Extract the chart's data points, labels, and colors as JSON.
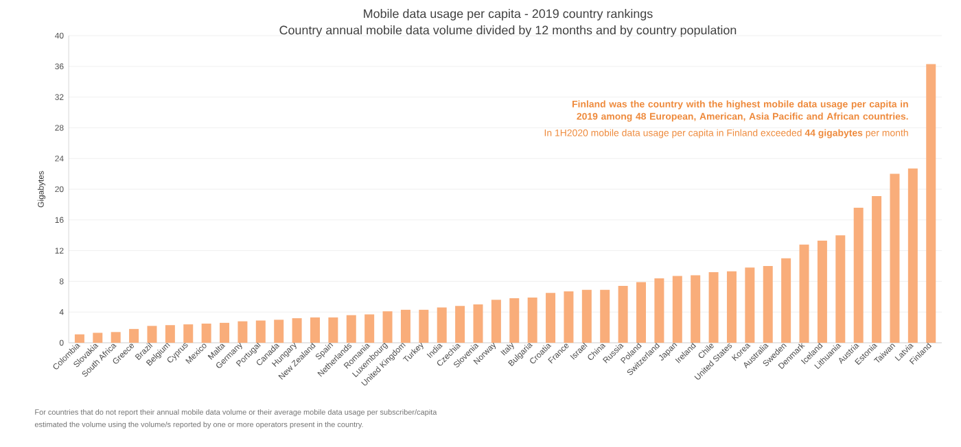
{
  "chart_data": {
    "type": "bar",
    "title": "Mobile data usage per capita - 2019 country rankings",
    "subtitle": "Country annual mobile data volume divided by 12 months and by country population",
    "ylabel": "Gigabytes",
    "categories": [
      "Colombia",
      "Slovakia",
      "South Africa",
      "Greece",
      "Brazil",
      "Belgium",
      "Cyprus",
      "Mexico",
      "Malta",
      "Germany",
      "Portugal",
      "Canada",
      "Hungary",
      "New Zealand",
      "Spain",
      "Netherlands",
      "Romania",
      "Luxembourg",
      "United Kingdom",
      "Turkey",
      "India",
      "Czechia",
      "Slovenia",
      "Norway",
      "Italy",
      "Bulgaria",
      "Croatia",
      "France",
      "Israel",
      "China",
      "Russia",
      "Poland",
      "Switzerland",
      "Japan",
      "Ireland",
      "Chile",
      "United States",
      "Korea",
      "Australia",
      "Sweden",
      "Denmark",
      "Iceland",
      "Lithuania",
      "Austria",
      "Estonia",
      "Taiwan",
      "Latvia",
      "Finland"
    ],
    "values": [
      1.1,
      1.3,
      1.4,
      1.8,
      2.2,
      2.3,
      2.4,
      2.5,
      2.6,
      2.8,
      2.9,
      3.0,
      3.2,
      3.3,
      3.3,
      3.6,
      3.7,
      4.1,
      4.3,
      4.3,
      4.6,
      4.8,
      5.0,
      5.6,
      5.8,
      5.9,
      6.5,
      6.7,
      6.9,
      6.9,
      7.4,
      7.9,
      8.4,
      8.7,
      8.8,
      9.2,
      9.3,
      9.8,
      10.0,
      11.0,
      12.8,
      13.3,
      14.0,
      17.6,
      19.1,
      22.0,
      22.7,
      36.3
    ],
    "color": "#f9ad7a",
    "ylim": [
      0,
      40
    ],
    "yticks": [
      0,
      4,
      8,
      12,
      16,
      20,
      24,
      28,
      32,
      36,
      40
    ],
    "grid": "y",
    "annotations": [
      "Finland was the country with the highest mobile data usage per capita in 2019 among 48 European, American, Asia Pacific and African countries.",
      "In 1H2020 mobile data usage per capita in Finland exceeded **44 gigabytes** per month",
      "For countries that do not report their annual mobile data volume or their average mobile data usage per subscriber/capita",
      "estimated the volume using the volume/s reported by one or more operators present in the country."
    ]
  }
}
